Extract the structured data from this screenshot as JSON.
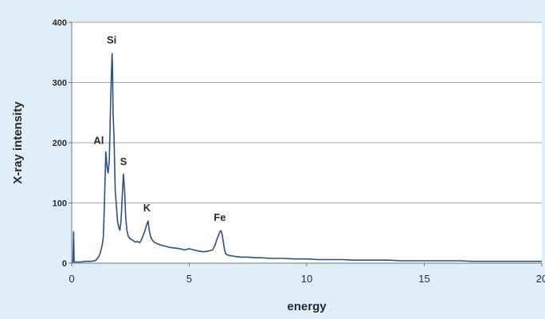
{
  "chart_data": {
    "type": "line",
    "title": "",
    "xlabel": "energy",
    "ylabel": "X-ray intensity",
    "xlim": [
      0,
      20
    ],
    "ylim": [
      0,
      400
    ],
    "xticks": [
      "0",
      "5",
      "10",
      "15",
      "20"
    ],
    "yticks": [
      "0",
      "100",
      "200",
      "300",
      "400"
    ],
    "grid": {
      "horizontal": true,
      "vertical": false
    },
    "legend": "none",
    "series": [
      {
        "color": "#2a4f8f",
        "x": [
          0,
          0.05,
          0.08,
          0.1,
          0.12,
          0.15,
          0.2,
          0.4,
          0.6,
          0.8,
          1.0,
          1.1,
          1.2,
          1.3,
          1.35,
          1.4,
          1.45,
          1.5,
          1.55,
          1.6,
          1.65,
          1.7,
          1.72,
          1.74,
          1.76,
          1.8,
          1.85,
          1.9,
          1.95,
          2.0,
          2.05,
          2.1,
          2.15,
          2.2,
          2.25,
          2.3,
          2.35,
          2.4,
          2.5,
          2.6,
          2.7,
          2.8,
          2.9,
          3.0,
          3.1,
          3.2,
          3.25,
          3.3,
          3.35,
          3.4,
          3.5,
          3.6,
          3.8,
          4.0,
          4.2,
          4.4,
          4.6,
          4.8,
          5.0,
          5.2,
          5.4,
          5.6,
          5.8,
          6.0,
          6.1,
          6.2,
          6.3,
          6.35,
          6.4,
          6.45,
          6.5,
          6.55,
          6.6,
          6.7,
          6.8,
          7.0,
          7.2,
          7.5,
          7.8,
          8.0,
          8.5,
          9.0,
          9.5,
          10.0,
          10.5,
          11.0,
          11.5,
          12.0,
          12.5,
          13.0,
          13.5,
          14.0,
          14.5,
          15.0,
          15.5,
          16.0,
          16.5,
          17.0,
          17.5,
          18.0,
          18.5,
          19.0,
          19.5,
          20.0
        ],
        "y": [
          0,
          1,
          52,
          5,
          2,
          2,
          2,
          2,
          3,
          3,
          4,
          8,
          15,
          30,
          45,
          110,
          185,
          160,
          150,
          172,
          260,
          330,
          348,
          320,
          250,
          210,
          120,
          95,
          70,
          60,
          55,
          70,
          110,
          148,
          120,
          75,
          55,
          45,
          40,
          38,
          35,
          36,
          34,
          42,
          52,
          65,
          70,
          55,
          45,
          40,
          35,
          33,
          30,
          28,
          26,
          25,
          24,
          22,
          24,
          22,
          20,
          19,
          20,
          22,
          30,
          42,
          52,
          54,
          48,
          35,
          22,
          16,
          14,
          13,
          12,
          11,
          10,
          10,
          9,
          9,
          8,
          8,
          7,
          7,
          6,
          6,
          6,
          5,
          5,
          5,
          5,
          4,
          4,
          4,
          4,
          4,
          4,
          3,
          3,
          3,
          3,
          3,
          3,
          3
        ]
      }
    ],
    "annotations": [
      {
        "label": "Si",
        "x": 1.7,
        "y": 365
      },
      {
        "label": "Al",
        "x": 1.15,
        "y": 198
      },
      {
        "label": "S",
        "x": 2.2,
        "y": 163
      },
      {
        "label": "K",
        "x": 3.2,
        "y": 86
      },
      {
        "label": "Fe",
        "x": 6.3,
        "y": 70
      }
    ]
  }
}
